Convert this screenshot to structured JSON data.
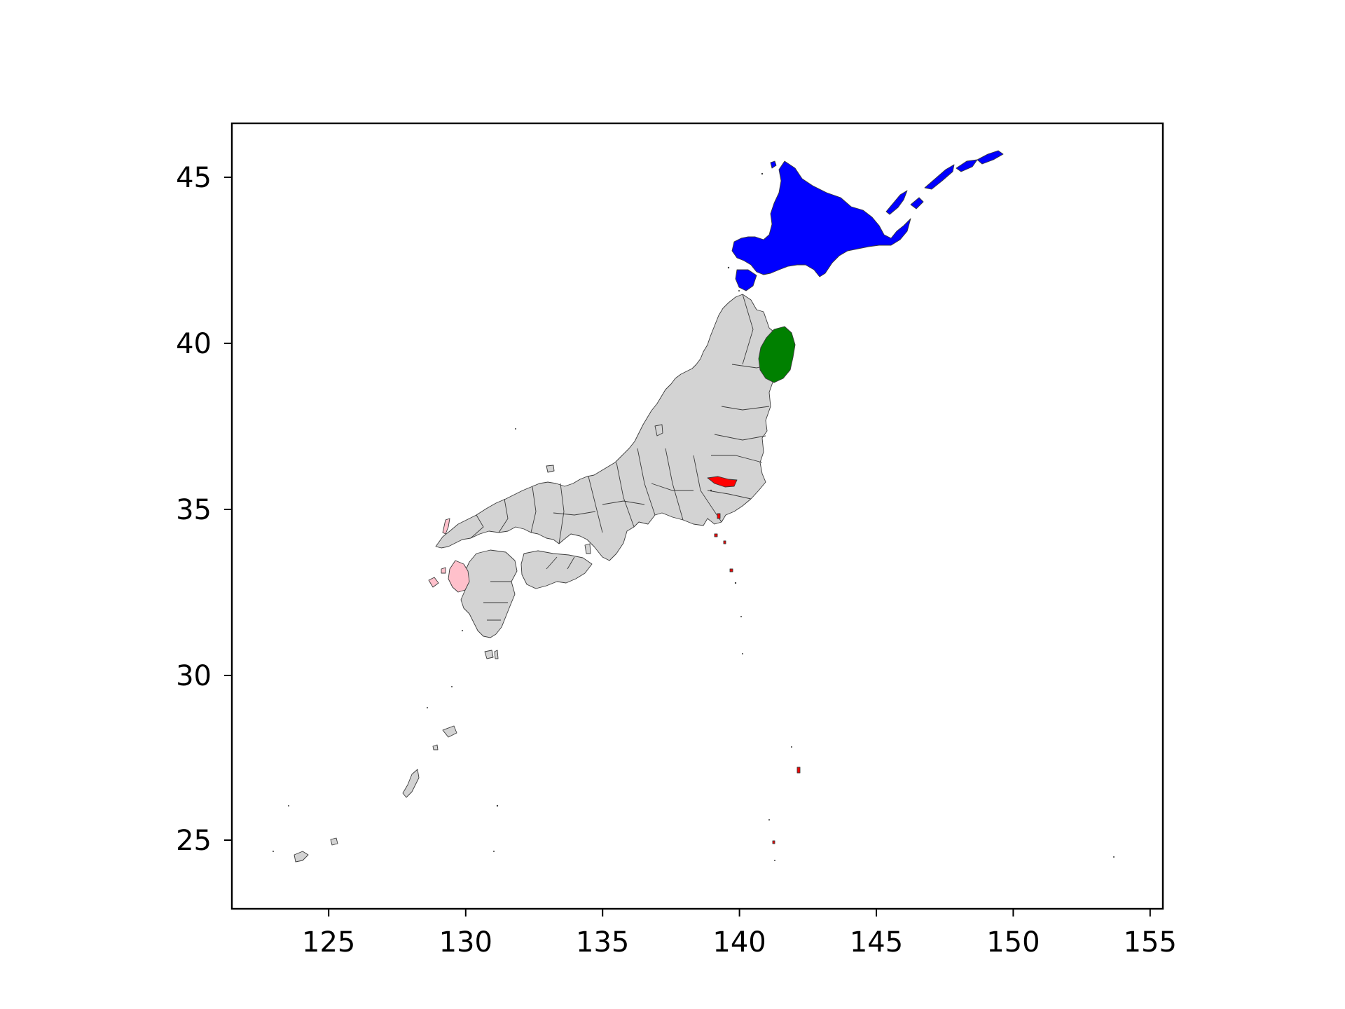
{
  "map": {
    "xlim": [
      121.5,
      155.5
    ],
    "ylim": [
      23.0,
      46.6
    ],
    "x_ticks": [
      "125",
      "130",
      "135",
      "140",
      "145",
      "150",
      "155"
    ],
    "y_ticks": [
      "25",
      "30",
      "35",
      "40",
      "45"
    ],
    "base_color": "#d3d3d3",
    "edge_color": "#3a3a3a",
    "highlights": [
      {
        "region": "hokkaido",
        "color": "#0000ff"
      },
      {
        "region": "iwate",
        "color": "#008000"
      },
      {
        "region": "tokyo",
        "color": "#ff0000"
      },
      {
        "region": "nagasaki",
        "color": "#ffc0cb"
      }
    ]
  }
}
